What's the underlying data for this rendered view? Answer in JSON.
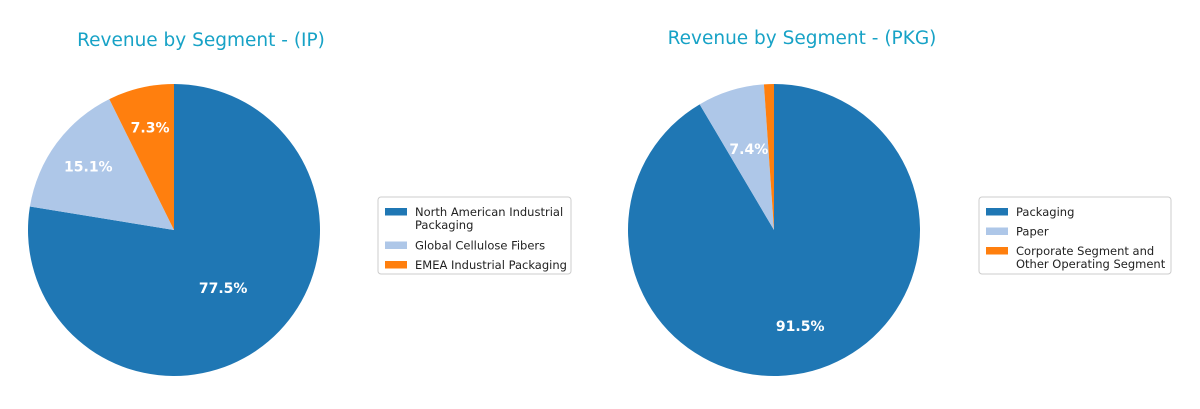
{
  "chart_data": [
    {
      "type": "pie",
      "title": "Revenue by Segment - (IP)",
      "title_color": "#17a2c6",
      "start_angle_deg": 90,
      "direction": "clockwise",
      "legend_position": "right",
      "slices": [
        {
          "label": "North American Industrial\nPackaging",
          "value": 77.5,
          "pct_label": "77.5%",
          "color": "#1f77b4"
        },
        {
          "label": "Global Cellulose Fibers",
          "value": 15.1,
          "pct_label": "15.1%",
          "color": "#aec7e8"
        },
        {
          "label": "EMEA Industrial Packaging",
          "value": 7.3,
          "pct_label": "7.3%",
          "color": "#ff7f0e"
        }
      ]
    },
    {
      "type": "pie",
      "title": "Revenue by Segment - (PKG)",
      "title_color": "#17a2c6",
      "start_angle_deg": 90,
      "direction": "clockwise",
      "legend_position": "right",
      "slices": [
        {
          "label": "Packaging",
          "value": 91.5,
          "pct_label": "91.5%",
          "color": "#1f77b4"
        },
        {
          "label": "Paper",
          "value": 7.4,
          "pct_label": "7.4%",
          "color": "#aec7e8"
        },
        {
          "label": "Corporate Segment and\nOther Operating Segment",
          "value": 1.1,
          "pct_label": "",
          "color": "#ff7f0e"
        }
      ]
    }
  ]
}
